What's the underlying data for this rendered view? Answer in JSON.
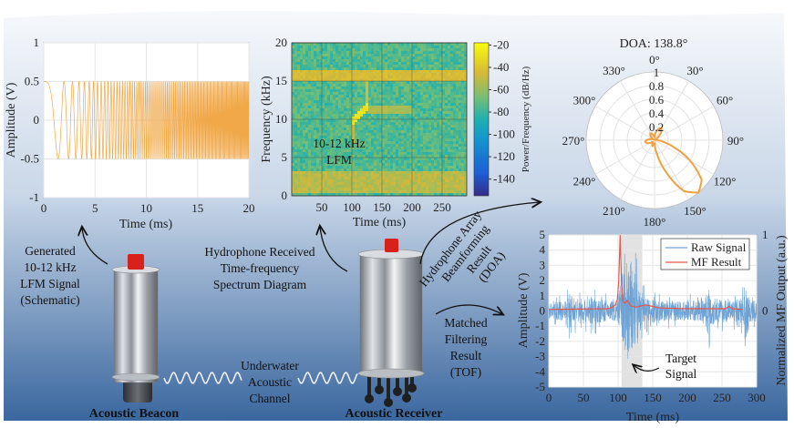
{
  "colors": {
    "bg_top": "#f4f7fb",
    "bg_bottom": "#3a679f",
    "lfm": "#f0a848",
    "raw": "#6fa3d4",
    "mf": "#e8554a",
    "polar": "#f0a040",
    "cap_red": "#d8201c"
  },
  "captions": {
    "lfm": [
      "Generated",
      "10-12 kHz",
      "LFM Signal",
      "(Schematic)"
    ],
    "spectrum": [
      "Hydrophone Received",
      "Time-frequency",
      "Spectrum Diagram"
    ],
    "doa": [
      "Hydrophone Array",
      "Beamforming",
      "Result",
      "(DOA)"
    ],
    "tof": [
      "Matched",
      "Filtering",
      "Result",
      "(TOF)"
    ],
    "channel": [
      "Underwater",
      "Acoustic",
      "Channel"
    ],
    "beacon": "Acoustic Beacon",
    "receiver": "Acoustic Receiver"
  },
  "chart_data": [
    {
      "id": "lfm",
      "type": "line",
      "xlabel": "Time (ms)",
      "ylabel": "Amplitude (V)",
      "xlim": [
        0,
        20
      ],
      "ylim": [
        -1,
        1
      ],
      "xticks": [
        0,
        5,
        10,
        15,
        20
      ],
      "yticks": [
        1,
        0.5,
        0,
        -0.5,
        -1
      ],
      "amplitude": 0.5,
      "grid": true
    },
    {
      "id": "spectrogram",
      "type": "heatmap",
      "xlabel": "Time (ms)",
      "ylabel": "Frequency (kHz)",
      "xlim": [
        0,
        291
      ],
      "ylim": [
        0,
        20
      ],
      "xticks": [
        50,
        100,
        150,
        200,
        250
      ],
      "yticks": [
        0,
        5,
        10,
        15,
        20
      ],
      "colorbar": {
        "label": "Power/Frequency (dB/Hz)",
        "ticks": [
          -20,
          -40,
          -60,
          -80,
          -100,
          -120,
          -140
        ],
        "range": [
          -155,
          -18
        ]
      },
      "annotation": [
        "10-12 kHz",
        "LFM"
      ],
      "features": {
        "noise_floor_db": -75,
        "tone_band": {
          "freq_khz": [
            15.3,
            16.5
          ],
          "level_db": -45
        },
        "low_band": {
          "freq_khz": [
            0.5,
            3.5
          ],
          "level_db": -52
        },
        "chirp": {
          "t_ms": [
            100,
            125
          ],
          "freq_khz": [
            10,
            12
          ],
          "level_db": -28
        },
        "echo": {
          "t_ms": [
            125,
            200
          ],
          "freq_khz": [
            11,
            12
          ],
          "level_db": -55
        }
      }
    },
    {
      "id": "doa",
      "type": "polar",
      "title": "DOA: 138.8°",
      "rticks": [
        "0.2",
        "0.4",
        "0.6",
        "0.8",
        "1"
      ],
      "angle_labels": [
        "0°",
        "30°",
        "60°",
        "90°",
        "120°",
        "150°",
        "180°",
        "210°",
        "240°",
        "270°",
        "300°",
        "330°"
      ],
      "pattern": {
        "angles_deg": [
          0,
          10,
          20,
          30,
          40,
          50,
          60,
          70,
          80,
          90,
          100,
          110,
          120,
          130,
          140,
          150,
          160,
          170,
          180,
          190,
          200,
          210,
          220,
          230,
          240,
          250,
          260,
          270,
          280,
          290,
          300,
          310,
          320,
          330,
          340,
          350
        ],
        "magnitude": [
          0.05,
          0.12,
          0.18,
          0.2,
          0.15,
          0.06,
          0.02,
          0.02,
          0.03,
          0.05,
          0.12,
          0.3,
          0.6,
          0.9,
          1.0,
          0.86,
          0.5,
          0.2,
          0.05,
          0.06,
          0.09,
          0.07,
          0.03,
          0.04,
          0.08,
          0.12,
          0.14,
          0.12,
          0.08,
          0.05,
          0.03,
          0.05,
          0.1,
          0.12,
          0.1,
          0.06
        ]
      }
    },
    {
      "id": "tof",
      "type": "line",
      "xlabel": "Time (ms)",
      "ylabel": "Amplitude (V)",
      "y2label": "Normalized MF Output (a.u.)",
      "xlim": [
        0,
        300
      ],
      "ylim": [
        -5,
        5
      ],
      "y2lim": [
        0,
        1
      ],
      "xticks": [
        0,
        50,
        100,
        150,
        200,
        250,
        300
      ],
      "yticks": [
        5,
        4,
        3,
        2,
        1,
        0,
        -1,
        -2,
        -3,
        -4,
        -5
      ],
      "y2ticks": [
        1,
        0
      ],
      "highlight_ms": [
        105,
        135
      ],
      "annotation": [
        "Target",
        "Signal"
      ],
      "legend": {
        "position": "top-right",
        "entries": [
          "Raw Signal",
          "MF Result"
        ]
      },
      "series": [
        {
          "name": "Raw Signal",
          "envelope": {
            "t_ms": [
              0,
              25,
              30,
              50,
              60,
              90,
              100,
              103,
              108,
              115,
              120,
              130,
              140,
              160,
              200,
              225,
              230,
              240,
              270,
              282,
              286,
              290,
              300
            ],
            "amp_v": [
              0.7,
              0.8,
              1.4,
              0.9,
              1.2,
              0.8,
              1.0,
              2.5,
              3.8,
              4.5,
              4.0,
              2.0,
              1.2,
              0.9,
              0.8,
              0.9,
              2.0,
              1.0,
              0.9,
              1.2,
              3.0,
              1.0,
              0.8
            ]
          }
        },
        {
          "name": "MF Result",
          "t_ms": [
            0,
            85,
            92,
            96,
            99,
            101,
            103,
            105,
            107,
            110,
            113,
            118,
            125,
            140,
            150,
            160,
            200,
            255,
            260,
            265,
            280
          ],
          "value": [
            0.02,
            0.03,
            0.05,
            0.08,
            0.15,
            0.4,
            1.0,
            0.35,
            0.12,
            0.1,
            0.14,
            0.07,
            0.05,
            0.08,
            0.06,
            0.04,
            0.03,
            0.03,
            0.06,
            0.03,
            0.02
          ]
        }
      ]
    }
  ]
}
